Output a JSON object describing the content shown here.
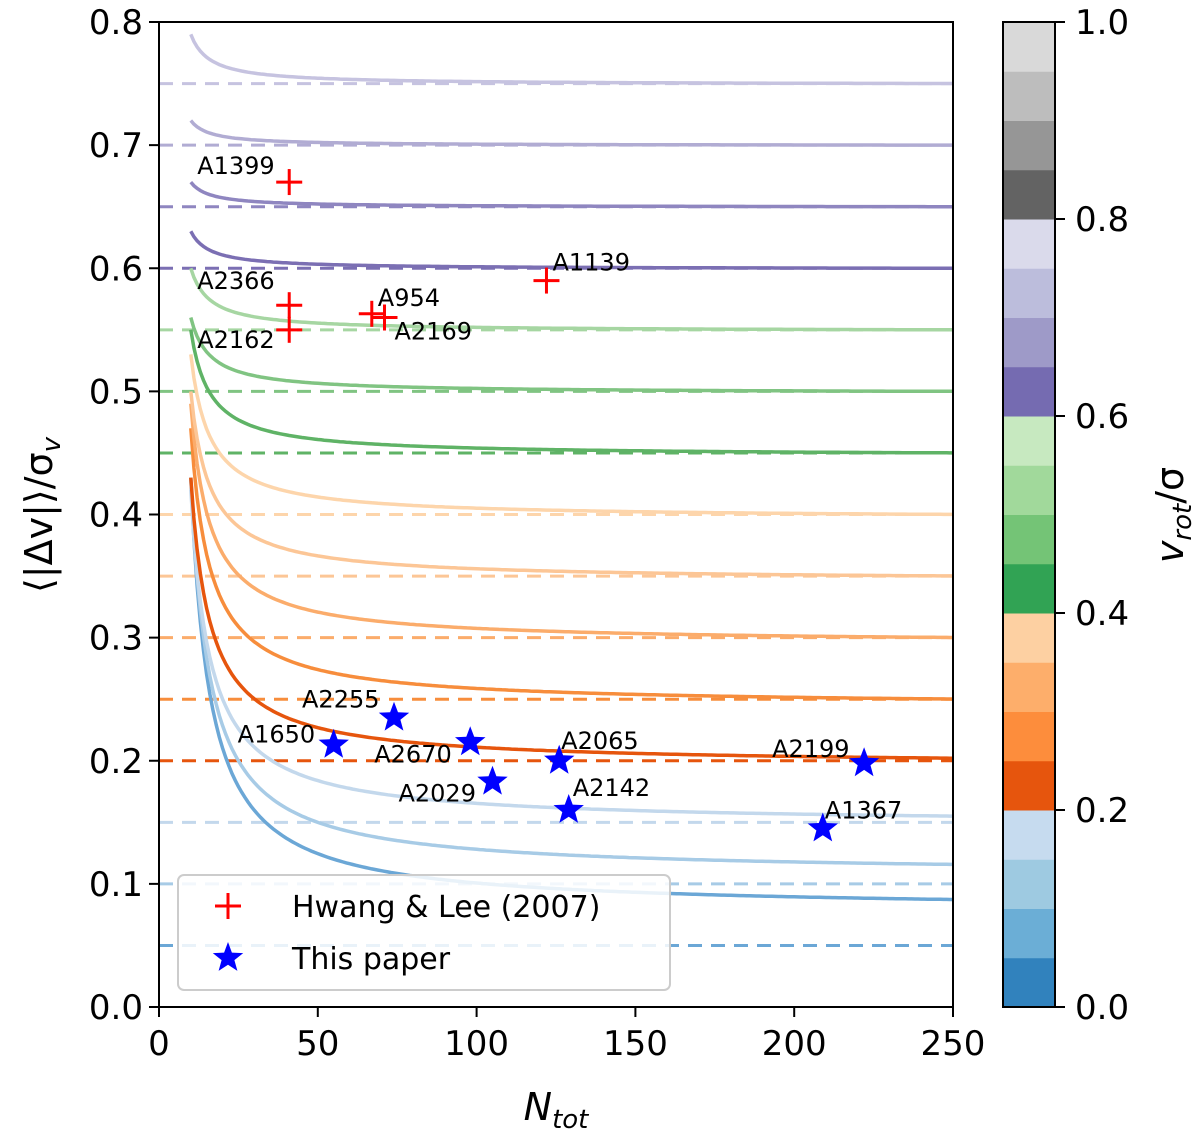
{
  "chart_data": {
    "type": "line",
    "xlabel": "N",
    "xlabel_sub": "tot",
    "ylabel": "⟨|Δv|⟩/σ",
    "ylabel_sub": "v",
    "xlim": [
      0,
      250
    ],
    "ylim": [
      0.0,
      0.8
    ],
    "xticks": [
      0,
      50,
      100,
      150,
      200,
      250
    ],
    "yticks": [
      0.0,
      0.1,
      0.2,
      0.3,
      0.4,
      0.5,
      0.6,
      0.7,
      0.8
    ],
    "x_tick_labels": [
      "0",
      "50",
      "100",
      "150",
      "200",
      "250"
    ],
    "y_tick_labels": [
      "0.0",
      "0.1",
      "0.2",
      "0.3",
      "0.4",
      "0.5",
      "0.6",
      "0.7",
      "0.8"
    ],
    "grid": false,
    "model_curves": {
      "n_start": 10,
      "reference_style": "dashed horizontal at v_rot/sigma",
      "series": [
        {
          "v_rot_sigma": 0.05,
          "start_value": 0.43,
          "end_value": 0.088,
          "color": "#6ba7d6"
        },
        {
          "v_rot_sigma": 0.1,
          "start_value": 0.43,
          "end_value": 0.116,
          "color": "#a7cbe6"
        },
        {
          "v_rot_sigma": 0.15,
          "start_value": 0.42,
          "end_value": 0.155,
          "color": "#c3d8ec"
        },
        {
          "v_rot_sigma": 0.2,
          "start_value": 0.43,
          "end_value": 0.202,
          "color": "#e6550d"
        },
        {
          "v_rot_sigma": 0.25,
          "start_value": 0.47,
          "end_value": 0.25,
          "color": "#f78d3c"
        },
        {
          "v_rot_sigma": 0.3,
          "start_value": 0.49,
          "end_value": 0.3,
          "color": "#fbac6b"
        },
        {
          "v_rot_sigma": 0.35,
          "start_value": 0.5,
          "end_value": 0.35,
          "color": "#fcc696"
        },
        {
          "v_rot_sigma": 0.4,
          "start_value": 0.53,
          "end_value": 0.4,
          "color": "#fdd5ab"
        },
        {
          "v_rot_sigma": 0.45,
          "start_value": 0.55,
          "end_value": 0.45,
          "color": "#5fb366"
        },
        {
          "v_rot_sigma": 0.5,
          "start_value": 0.56,
          "end_value": 0.5,
          "color": "#80c482"
        },
        {
          "v_rot_sigma": 0.55,
          "start_value": 0.6,
          "end_value": 0.55,
          "color": "#a6d6a2"
        },
        {
          "v_rot_sigma": 0.6,
          "start_value": 0.63,
          "end_value": 0.6,
          "color": "#7b6fb3"
        },
        {
          "v_rot_sigma": 0.65,
          "start_value": 0.67,
          "end_value": 0.65,
          "color": "#8f86c0"
        },
        {
          "v_rot_sigma": 0.7,
          "start_value": 0.72,
          "end_value": 0.7,
          "color": "#b1acd3"
        },
        {
          "v_rot_sigma": 0.75,
          "start_value": 0.79,
          "end_value": 0.75,
          "color": "#c6c3e0"
        }
      ]
    },
    "scatter_series": [
      {
        "name": "Hwang & Lee (2007)",
        "marker": "plus",
        "color": "#ff0000",
        "points": [
          {
            "label": "A1399",
            "x": 41,
            "y": 0.67
          },
          {
            "label": "A1139",
            "x": 122,
            "y": 0.59
          },
          {
            "label": "A2366",
            "x": 41,
            "y": 0.57
          },
          {
            "label": "A954",
            "x": 67,
            "y": 0.563
          },
          {
            "label": "A2169",
            "x": 71,
            "y": 0.56
          },
          {
            "label": "A2162",
            "x": 41,
            "y": 0.55
          }
        ]
      },
      {
        "name": "This paper",
        "marker": "star",
        "color": "#0000ff",
        "points": [
          {
            "label": "A2255",
            "x": 74,
            "y": 0.235
          },
          {
            "label": "A1650",
            "x": 55,
            "y": 0.213
          },
          {
            "label": "A2670",
            "x": 98,
            "y": 0.215
          },
          {
            "label": "A2029",
            "x": 105,
            "y": 0.183
          },
          {
            "label": "A2065",
            "x": 126,
            "y": 0.2
          },
          {
            "label": "A2142",
            "x": 129,
            "y": 0.16
          },
          {
            "label": "A2199",
            "x": 222,
            "y": 0.198
          },
          {
            "label": "A1367",
            "x": 209,
            "y": 0.145
          }
        ]
      }
    ],
    "legend": {
      "placement": "lower-left",
      "entries": [
        "Hwang & Lee (2007)",
        "This paper"
      ]
    },
    "colorbar": {
      "label": "v",
      "label_sub": "rot",
      "label_suffix": "/σ",
      "range": [
        0.0,
        1.0
      ],
      "ticks": [
        0.0,
        0.2,
        0.4,
        0.6,
        0.8,
        1.0
      ],
      "tick_labels": [
        "0.0",
        "0.2",
        "0.4",
        "0.6",
        "0.8",
        "1.0"
      ],
      "bands": [
        "#3182bd",
        "#6baed6",
        "#9ecae1",
        "#c6dbef",
        "#e6550d",
        "#fd8d3c",
        "#fdae6b",
        "#fdd0a2",
        "#31a354",
        "#74c476",
        "#a1d99b",
        "#c7e9c0",
        "#756bb1",
        "#9e9ac8",
        "#bcbddc",
        "#dadaeb",
        "#636363",
        "#969696",
        "#bdbdbd",
        "#d9d9d9"
      ]
    }
  }
}
